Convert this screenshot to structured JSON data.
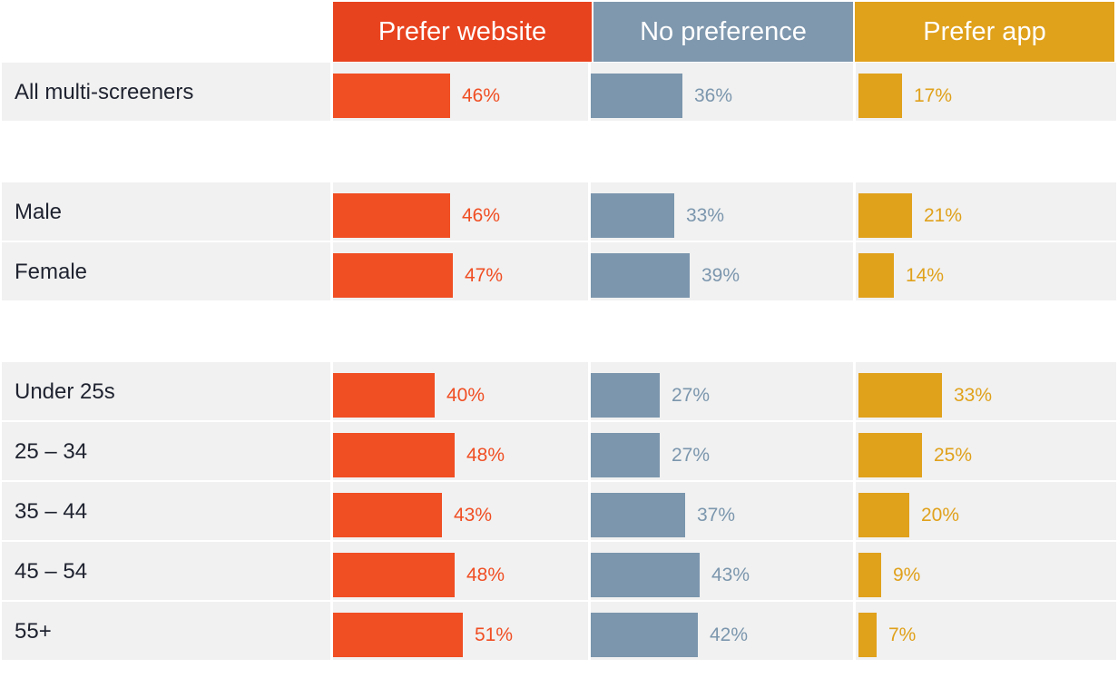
{
  "colors": {
    "website": "#f04e23",
    "website_header": "#e8431f",
    "neutral": "#7b96ad",
    "neutral_header": "#7f98ae",
    "app": "#e0a11b",
    "app_header": "#e0a11b",
    "row_bg": "#f1f1f1",
    "label_text": "#1f2330"
  },
  "chart_data": {
    "type": "bar",
    "orientation": "horizontal",
    "value_format": "percent",
    "xlim": [
      0,
      100
    ],
    "columns": [
      "Prefer website",
      "No preference",
      "Prefer app"
    ],
    "groups": [
      {
        "rows": [
          {
            "label": "All multi-screeners",
            "values": [
              46,
              36,
              17
            ],
            "labels": [
              "46%",
              "36%",
              "17%"
            ]
          }
        ]
      },
      {
        "rows": [
          {
            "label": "Male",
            "values": [
              46,
              33,
              21
            ],
            "labels": [
              "46%",
              "33%",
              "21%"
            ]
          },
          {
            "label": "Female",
            "values": [
              47,
              39,
              14
            ],
            "labels": [
              "47%",
              "39%",
              "14%"
            ]
          }
        ]
      },
      {
        "rows": [
          {
            "label": "Under 25s",
            "values": [
              40,
              27,
              33
            ],
            "labels": [
              "40%",
              "27%",
              "33%"
            ]
          },
          {
            "label": "25 – 34",
            "values": [
              48,
              27,
              25
            ],
            "labels": [
              "48%",
              "27%",
              "25%"
            ]
          },
          {
            "label": "35 – 44",
            "values": [
              43,
              37,
              20
            ],
            "labels": [
              "43%",
              "37%",
              "20%"
            ]
          },
          {
            "label": "45 – 54",
            "values": [
              48,
              43,
              9
            ],
            "labels": [
              "48%",
              "43%",
              "9%"
            ]
          },
          {
            "label": "55+",
            "values": [
              51,
              42,
              7
            ],
            "labels": [
              "51%",
              "42%",
              "7%"
            ]
          }
        ]
      }
    ]
  }
}
